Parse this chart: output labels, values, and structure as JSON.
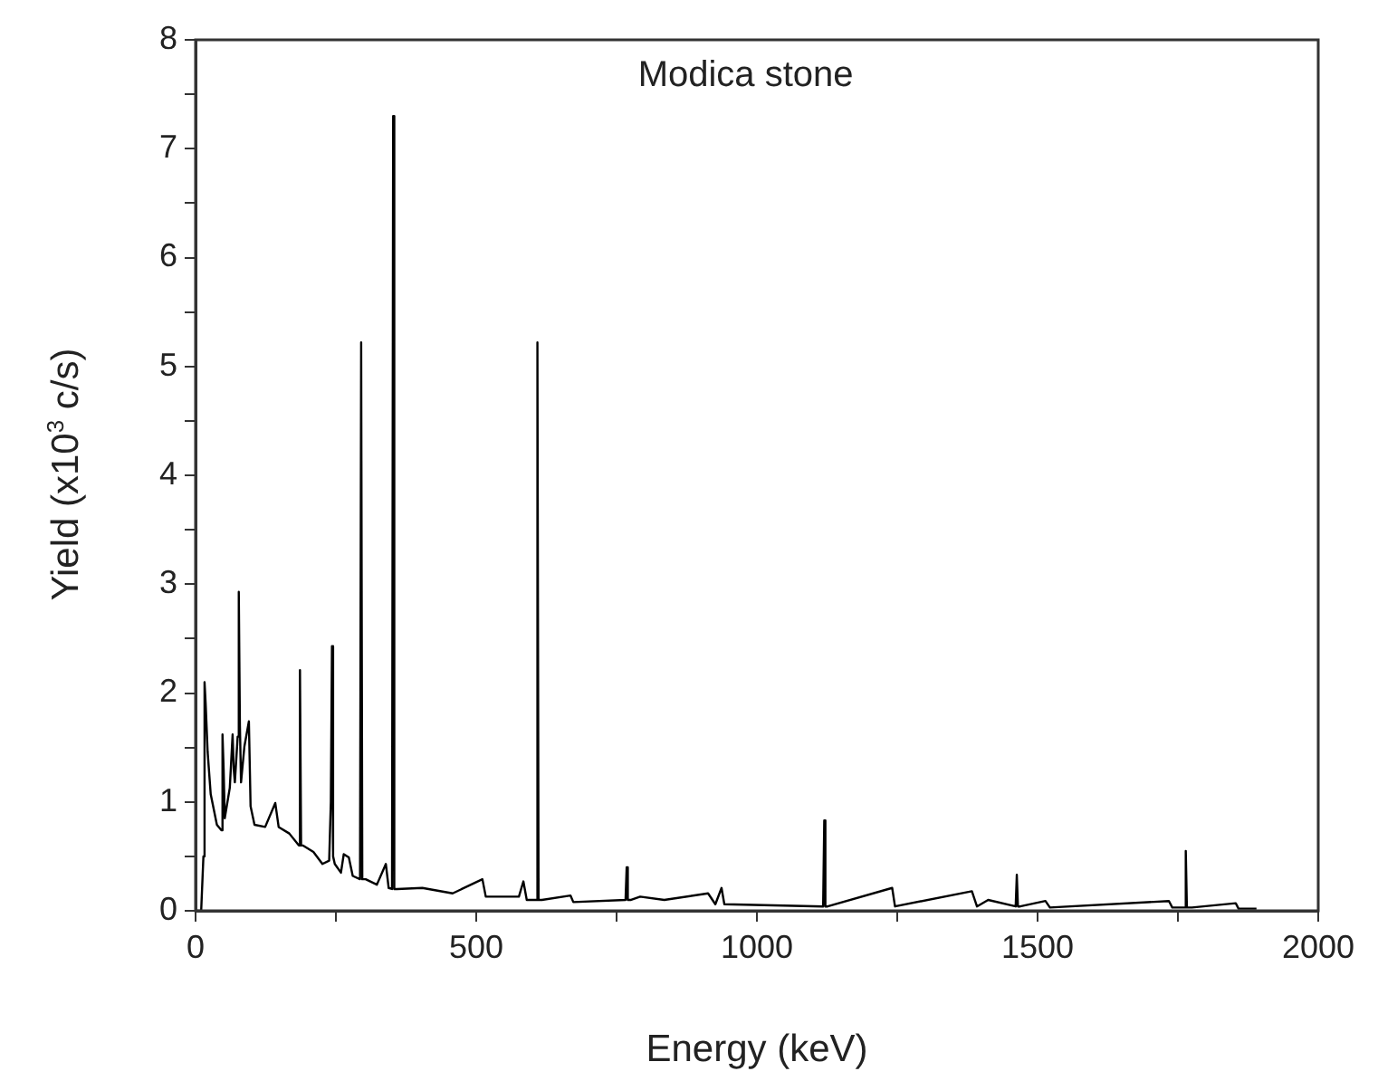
{
  "chart_data": {
    "type": "line",
    "title": "Modica stone",
    "xlabel": "Energy (keV)",
    "ylabel": "Yield (x10$^{3}$ c/s)",
    "x": [
      0,
      10,
      14,
      16,
      18,
      21.5,
      27,
      38,
      46,
      48,
      50,
      52,
      61,
      66,
      68,
      70,
      75,
      77,
      79,
      81,
      87,
      95,
      98,
      105,
      124,
      142,
      148,
      167,
      184,
      186,
      188,
      191,
      210,
      226,
      238,
      241,
      243,
      245,
      248,
      259,
      264,
      273,
      280,
      293,
      295,
      297,
      303,
      323,
      339,
      344,
      350,
      352,
      354,
      359,
      404,
      458,
      511,
      517,
      576,
      584,
      590,
      607,
      609,
      611,
      617,
      668,
      673,
      766,
      768,
      770,
      776,
      792,
      835,
      913,
      926,
      937,
      942,
      1118,
      1120,
      1122,
      1126,
      1241,
      1246,
      1383,
      1392,
      1412,
      1461,
      1463,
      1465,
      1469,
      1514,
      1522,
      1734,
      1740,
      1762,
      1764,
      1766,
      1775,
      1853,
      1858,
      1890
    ],
    "values": [
      0,
      0,
      0.5,
      2.1,
      1.9,
      1.46,
      1.07,
      0.79,
      0.74,
      1.62,
      1.3,
      0.85,
      1.13,
      1.62,
      1.3,
      1.18,
      1.6,
      2.93,
      1.7,
      1.18,
      1.51,
      1.74,
      0.96,
      0.79,
      0.77,
      0.99,
      0.77,
      0.71,
      0.6,
      2.21,
      0.6,
      0.6,
      0.54,
      0.43,
      0.46,
      1.0,
      2.43,
      0.5,
      0.43,
      0.35,
      0.52,
      0.49,
      0.32,
      0.29,
      5.22,
      0.29,
      0.29,
      0.24,
      0.43,
      0.21,
      0.2,
      7.3,
      0.2,
      0.2,
      0.21,
      0.16,
      0.29,
      0.13,
      0.13,
      0.27,
      0.1,
      0.1,
      5.22,
      0.1,
      0.1,
      0.14,
      0.08,
      0.1,
      0.4,
      0.1,
      0.1,
      0.13,
      0.1,
      0.16,
      0.06,
      0.21,
      0.06,
      0.04,
      0.83,
      0.04,
      0.04,
      0.21,
      0.04,
      0.18,
      0.04,
      0.1,
      0.04,
      0.33,
      0.04,
      0.04,
      0.09,
      0.03,
      0.09,
      0.03,
      0.03,
      0.55,
      0.03,
      0.03,
      0.07,
      0.02,
      0.02
    ],
    "color": "#000000",
    "xlim": [
      0,
      2000
    ],
    "xticks": [
      0,
      {
        "value": 250,
        "label": null
      },
      500,
      {
        "value": 750,
        "label": null
      },
      1000,
      {
        "value": 1250,
        "label": null
      },
      1500,
      {
        "value": 1750,
        "label": null
      },
      2000
    ],
    "ylim": [
      0,
      8
    ],
    "yticks": [
      0,
      {
        "value": 0.5,
        "label": null
      },
      1,
      {
        "value": 1.5,
        "label": null
      },
      2,
      {
        "value": 2.5,
        "label": null
      },
      3,
      {
        "value": 3.5,
        "label": null
      },
      4,
      {
        "value": 4.5,
        "label": null
      },
      5,
      {
        "value": 5.5,
        "label": null
      },
      6,
      {
        "value": 6.5,
        "label": null
      },
      7,
      {
        "value": 7.5,
        "label": null
      },
      8
    ],
    "grid": false,
    "legend": false,
    "marker": "none",
    "line_style": "solid"
  }
}
